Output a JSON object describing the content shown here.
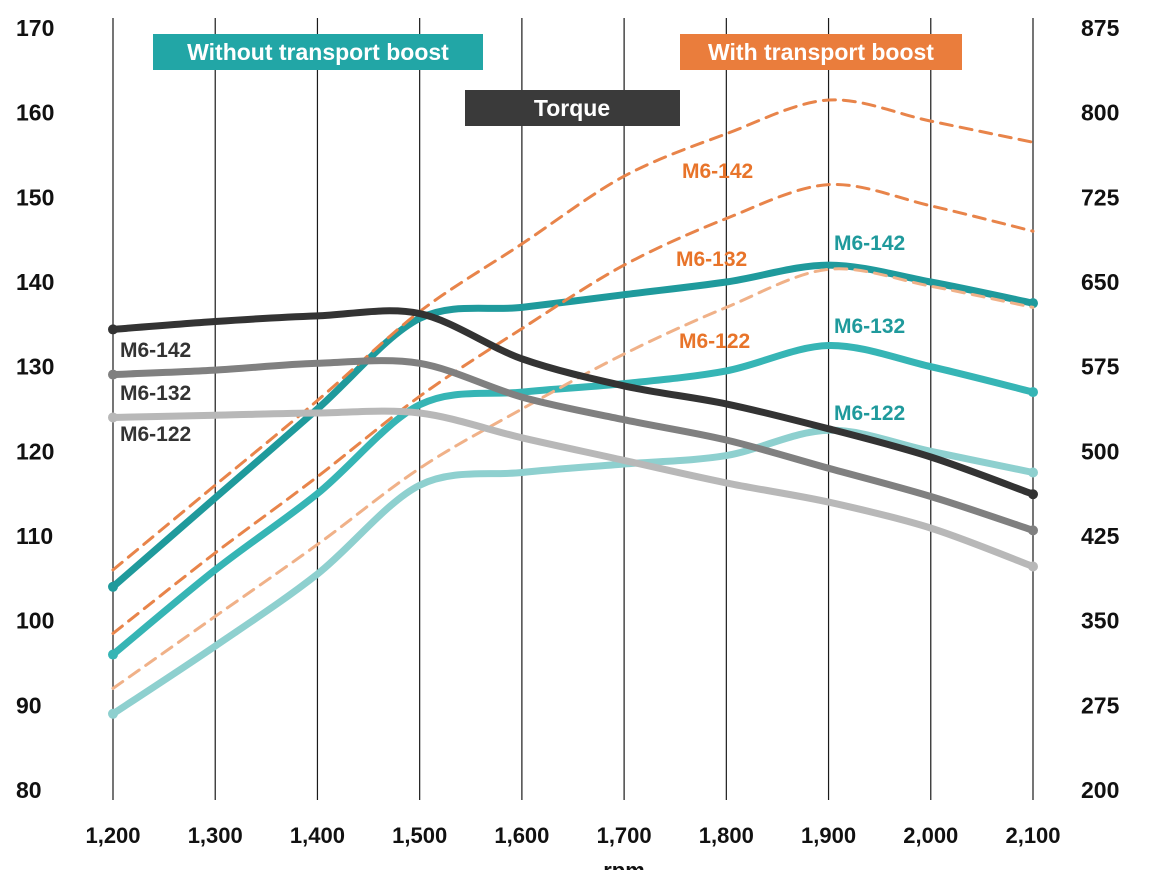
{
  "chart_data": {
    "type": "line",
    "xlabel": "rpm",
    "x": [
      1200,
      1300,
      1400,
      1500,
      1600,
      1700,
      1800,
      1900,
      2000,
      2100
    ],
    "x_tick_labels": [
      "1,200",
      "1,300",
      "1,400",
      "1,500",
      "1,600",
      "1,700",
      "1,800",
      "1,900",
      "2,000",
      "2,100"
    ],
    "y_left": {
      "ticks": [
        "80",
        "90",
        "100",
        "110",
        "120",
        "130",
        "140",
        "150",
        "160",
        "170"
      ],
      "ylim": [
        80,
        170
      ]
    },
    "y_right": {
      "ticks": [
        "200",
        "275",
        "350",
        "425",
        "500",
        "575",
        "650",
        "725",
        "800",
        "875"
      ],
      "ylim": [
        200,
        875
      ]
    },
    "grid": "vertical",
    "legend": {
      "without_boost": "Without transport boost",
      "with_boost": "With transport boost",
      "torque": "Torque"
    },
    "colors": {
      "teal_dark": "#1f9a9c",
      "teal_mid": "#36b5b5",
      "teal_light": "#8ed0cf",
      "orange": "#e8844a",
      "orange_light": "#f0b188",
      "torque_dark": "#333333",
      "torque_mid": "#808080",
      "torque_light": "#b8b8b8",
      "teal_badge": "#22a6a6",
      "orange_badge": "#ea7d3c",
      "torque_badge": "#3a3a3a"
    },
    "series": [
      {
        "name": "M6-142 without transport boost",
        "axis": "left",
        "style": "teal_dark",
        "label": "M6-142",
        "values": [
          104,
          114.5,
          125,
          135.7,
          137,
          138.5,
          140,
          142,
          140,
          137.5
        ]
      },
      {
        "name": "M6-132 without transport boost",
        "axis": "left",
        "style": "teal_mid",
        "label": "M6-132",
        "values": [
          96,
          106,
          115,
          125.5,
          127,
          128,
          129.5,
          132.5,
          130,
          127
        ]
      },
      {
        "name": "M6-122 without transport boost",
        "axis": "left",
        "style": "teal_light",
        "label": "",
        "values": [
          89,
          97,
          105.5,
          116,
          117.5,
          118.5,
          119.5,
          122.5,
          120,
          117.5
        ]
      },
      {
        "name": "M6-142 with transport boost",
        "axis": "left",
        "style": "orange",
        "label": "M6-142",
        "values": [
          106,
          116,
          126,
          136.5,
          144.5,
          152.5,
          157.5,
          161.5,
          159,
          156.5
        ]
      },
      {
        "name": "M6-132 with transport boost",
        "axis": "left",
        "style": "orange",
        "label": "M6-132",
        "values": [
          98.5,
          108,
          117,
          126.5,
          134.5,
          142,
          147.5,
          151.5,
          149,
          146
        ]
      },
      {
        "name": "M6-122 with transport boost",
        "axis": "left",
        "style": "orange_light",
        "label": "M6-122",
        "values": [
          92,
          100.5,
          109,
          118,
          125,
          131.5,
          137,
          141.5,
          139.5,
          137
        ]
      },
      {
        "name": "M6-142 torque",
        "axis": "right",
        "style": "torque_dark",
        "label": "M6-142",
        "values": [
          608,
          615,
          620,
          622,
          582,
          558,
          542,
          520,
          495,
          462
        ]
      },
      {
        "name": "M6-132 torque",
        "axis": "right",
        "style": "torque_mid",
        "label": "M6-132",
        "values": [
          568,
          572,
          578,
          578,
          548,
          528,
          510,
          485,
          460,
          430
        ]
      },
      {
        "name": "M6-122 torque",
        "axis": "right",
        "style": "torque_light",
        "label": "M6-122",
        "values": [
          530,
          532,
          534,
          534,
          512,
          492,
          472,
          455,
          432,
          398
        ]
      }
    ],
    "annotations": [
      {
        "text": "M6-142",
        "style": "orange_badge"
      },
      {
        "text": "M6-132",
        "style": "orange_badge"
      },
      {
        "text": "M6-122",
        "style": "orange_badge"
      },
      {
        "text": "M6-142",
        "style": "teal_badge"
      },
      {
        "text": "M6-132",
        "style": "teal_badge"
      },
      {
        "text": "M6-122",
        "style": "teal_badge"
      },
      {
        "text": "M6-142",
        "style": "torque_dark"
      },
      {
        "text": "M6-132",
        "style": "torque_dark"
      },
      {
        "text": "M6-122",
        "style": "torque_dark"
      }
    ]
  }
}
